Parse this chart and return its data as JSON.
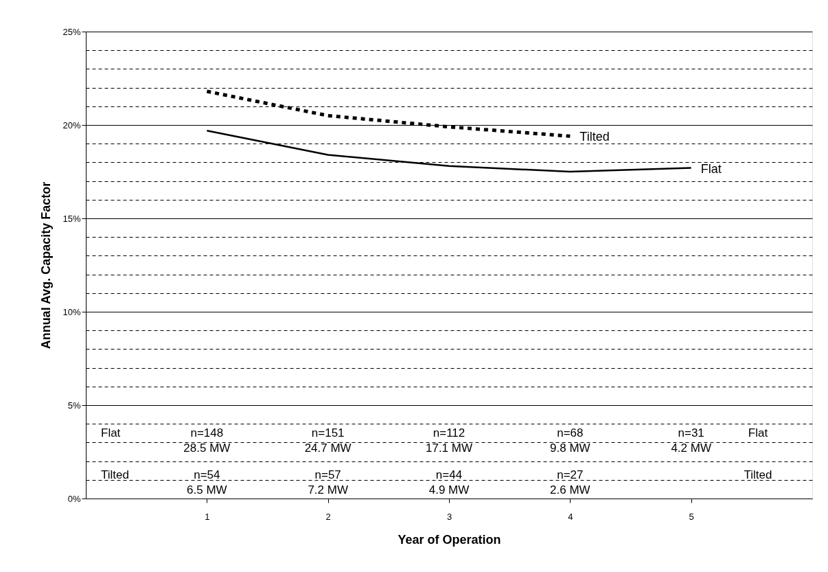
{
  "chart_data": {
    "type": "line",
    "xlabel": "Year of Operation",
    "ylabel": "Annual Avg. Capacity Factor",
    "x": [
      1,
      2,
      3,
      4,
      5
    ],
    "series": [
      {
        "name": "Flat",
        "color": "#000000",
        "line_style": "solid",
        "values": [
          19.7,
          18.4,
          17.8,
          17.5,
          17.7
        ]
      },
      {
        "name": "Tilted",
        "color": "#000000",
        "line_style": "dotted",
        "values": [
          21.8,
          20.5,
          19.9,
          19.4,
          null
        ]
      }
    ],
    "xlim": [
      0,
      6
    ],
    "xticks": [
      1,
      2,
      3,
      4,
      5
    ],
    "ylim": [
      0,
      25
    ],
    "yticks": [
      {
        "value": 0,
        "label": "0%"
      },
      {
        "value": 1,
        "label": null
      },
      {
        "value": 2,
        "label": null
      },
      {
        "value": 3,
        "label": null
      },
      {
        "value": 4,
        "label": null
      },
      {
        "value": 5,
        "label": "5%"
      },
      {
        "value": 6,
        "label": null
      },
      {
        "value": 7,
        "label": null
      },
      {
        "value": 8,
        "label": null
      },
      {
        "value": 9,
        "label": null
      },
      {
        "value": 10,
        "label": "10%"
      },
      {
        "value": 11,
        "label": null
      },
      {
        "value": 12,
        "label": null
      },
      {
        "value": 13,
        "label": null
      },
      {
        "value": 14,
        "label": null
      },
      {
        "value": 15,
        "label": "15%"
      },
      {
        "value": 16,
        "label": null
      },
      {
        "value": 17,
        "label": null
      },
      {
        "value": 18,
        "label": null
      },
      {
        "value": 19,
        "label": null
      },
      {
        "value": 20,
        "label": "20%"
      },
      {
        "value": 21,
        "label": null
      },
      {
        "value": 22,
        "label": null
      },
      {
        "value": 23,
        "label": null
      },
      {
        "value": 24,
        "label": null
      },
      {
        "value": 25,
        "label": "25%"
      }
    ],
    "grid": "y",
    "legend": false,
    "marker": "none",
    "annotations": [
      "Flat",
      "n=148\n28.5 MW",
      "n=151\n24.7 MW",
      "n=112\n17.1 MW",
      "n=68\n9.8 MW",
      "n=31\n4.2 MW",
      "Flat",
      "Tilted",
      "n=54\n6.5 MW",
      "n=57\n7.2 MW",
      "n=44\n4.9 MW",
      "n=27\n2.6 MW",
      "Tilted"
    ]
  }
}
